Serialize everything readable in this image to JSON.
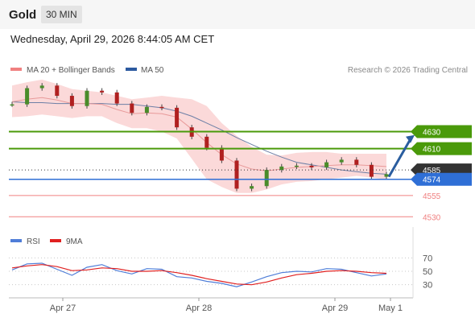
{
  "header": {
    "title": "Gold",
    "timeframe": "30 MIN",
    "datetime": "Wednesday, April 29, 2026 8:44:05 AM CET"
  },
  "legend": {
    "bb_label": "MA 20 + Bollinger Bands",
    "bb_color": "#f08080",
    "ma50_label": "MA 50",
    "ma50_color": "#2c5aa0",
    "rsi_label": "RSI",
    "rsi_color": "#4f7dd8",
    "nine_ma_label": "9MA",
    "nine_ma_color": "#e02020"
  },
  "copyright": "Research © 2026 Trading Central",
  "colors": {
    "resistance": "#4a9a0a",
    "support": "#f08080",
    "current_price": "#2f6fd6",
    "pivot": "#333333",
    "arrow": "#2a5d9f"
  },
  "chart_data": [
    {
      "type": "line",
      "title": "",
      "x_ticks": [
        "Apr 27",
        "Apr 28",
        "Apr 29",
        "May 1"
      ],
      "ylim": [
        4518,
        4690
      ],
      "levels": [
        {
          "label": "4630",
          "value": 4630,
          "kind": "resistance"
        },
        {
          "label": "4610",
          "value": 4610,
          "kind": "resistance"
        },
        {
          "label": "4585",
          "value": 4585,
          "kind": "pivot"
        },
        {
          "label": "4574",
          "value": 4574,
          "kind": "current"
        },
        {
          "label": "4555",
          "value": 4555,
          "kind": "support"
        },
        {
          "label": "4530",
          "value": 4530,
          "kind": "support"
        }
      ],
      "series": [
        {
          "name": "MA 50",
          "values": [
            4665,
            4664,
            4664,
            4663,
            4663,
            4663,
            4663,
            4662,
            4662,
            4660,
            4658,
            4654,
            4648,
            4640,
            4632,
            4623,
            4615,
            4607,
            4600,
            4594,
            4591,
            4588,
            4585,
            4583,
            4581,
            4580
          ]
        },
        {
          "name": "MA 20 + Bollinger Bands",
          "values": [
            4665,
            4668,
            4670,
            4667,
            4663,
            4663,
            4662,
            4656,
            4651,
            4652,
            4651,
            4647,
            4633,
            4617,
            4603,
            4592,
            4586,
            4584,
            4586,
            4588,
            4589,
            4590,
            4591,
            4591,
            4590,
            4589
          ]
        },
        {
          "name": "Bollinger upper",
          "values": [
            4684,
            4688,
            4691,
            4686,
            4680,
            4678,
            4676,
            4672,
            4668,
            4670,
            4672,
            4670,
            4668,
            4660,
            4640,
            4625,
            4612,
            4603,
            4602,
            4605,
            4606,
            4606,
            4604,
            4604,
            4604,
            4604
          ]
        },
        {
          "name": "Bollinger lower",
          "values": [
            4647,
            4648,
            4650,
            4648,
            4646,
            4648,
            4648,
            4640,
            4634,
            4634,
            4630,
            4622,
            4598,
            4574,
            4565,
            4558,
            4558,
            4562,
            4568,
            4571,
            4572,
            4574,
            4576,
            4578,
            4576,
            4574
          ]
        },
        {
          "name": "Price",
          "values": [
            4662,
            4681,
            4684,
            4672,
            4660,
            4678,
            4676,
            4663,
            4652,
            4659,
            4658,
            4635,
            4624,
            4611,
            4596,
            4563,
            4566,
            4585,
            4589,
            4590,
            4588,
            4594,
            4597,
            4591,
            4577,
            4580
          ]
        }
      ]
    },
    {
      "type": "line",
      "title": "",
      "yticks": [
        30,
        50,
        70
      ],
      "ylim": [
        20,
        80
      ],
      "series": [
        {
          "name": "RSI",
          "values": [
            52,
            61,
            62,
            53,
            44,
            56,
            60,
            51,
            46,
            54,
            53,
            42,
            40,
            35,
            32,
            27,
            34,
            42,
            48,
            50,
            49,
            54,
            53,
            48,
            43,
            46
          ]
        },
        {
          "name": "9MA",
          "values": [
            55,
            58,
            60,
            57,
            51,
            52,
            55,
            54,
            50,
            50,
            51,
            48,
            44,
            39,
            35,
            31,
            30,
            34,
            40,
            45,
            47,
            50,
            51,
            50,
            48,
            47
          ]
        }
      ]
    }
  ]
}
